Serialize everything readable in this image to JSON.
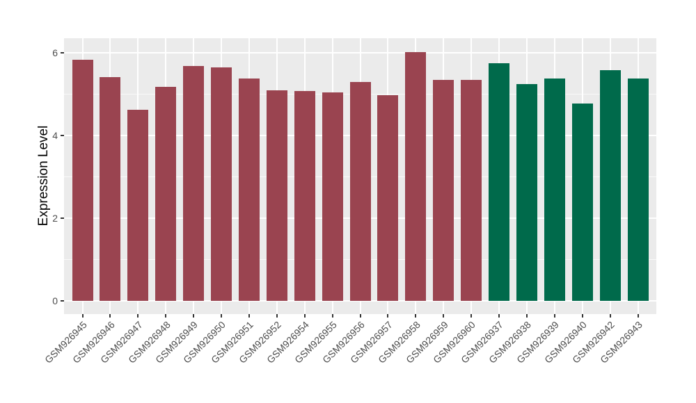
{
  "figure": {
    "background": "#FFFFFF"
  },
  "chart_data": {
    "type": "bar",
    "title": "",
    "xlabel": "",
    "ylabel": "Expression Level",
    "ylim": [
      -0.32,
      6.36
    ],
    "yticks": [
      0,
      2,
      4,
      6
    ],
    "yticks_minor": [
      1,
      3,
      5
    ],
    "grid": "on",
    "legend": "none",
    "panel_background": "#EBEBEB",
    "gridline_color": "#FFFFFF",
    "axis_text_color": "#4D4D4D",
    "tick_mark_color": "#333333",
    "bar_group_colors": {
      "left_group": "#9A4450",
      "right_group": "#006A4B"
    },
    "bars": [
      {
        "label": "GSM926945",
        "value": 5.83,
        "color": "#9A4450"
      },
      {
        "label": "GSM926946",
        "value": 5.41,
        "color": "#9A4450"
      },
      {
        "label": "GSM926947",
        "value": 4.62,
        "color": "#9A4450"
      },
      {
        "label": "GSM926948",
        "value": 5.19,
        "color": "#9A4450"
      },
      {
        "label": "GSM926949",
        "value": 5.69,
        "color": "#9A4450"
      },
      {
        "label": "GSM926950",
        "value": 5.65,
        "color": "#9A4450"
      },
      {
        "label": "GSM926951",
        "value": 5.39,
        "color": "#9A4450"
      },
      {
        "label": "GSM926952",
        "value": 5.09,
        "color": "#9A4450"
      },
      {
        "label": "GSM926954",
        "value": 5.08,
        "color": "#9A4450"
      },
      {
        "label": "GSM926955",
        "value": 5.04,
        "color": "#9A4450"
      },
      {
        "label": "GSM926956",
        "value": 5.3,
        "color": "#9A4450"
      },
      {
        "label": "GSM926957",
        "value": 4.98,
        "color": "#9A4450"
      },
      {
        "label": "GSM926958",
        "value": 6.03,
        "color": "#9A4450"
      },
      {
        "label": "GSM926959",
        "value": 5.35,
        "color": "#9A4450"
      },
      {
        "label": "GSM926960",
        "value": 5.35,
        "color": "#9A4450"
      },
      {
        "label": "GSM926937",
        "value": 5.76,
        "color": "#006A4B"
      },
      {
        "label": "GSM926938",
        "value": 5.25,
        "color": "#006A4B"
      },
      {
        "label": "GSM926939",
        "value": 5.39,
        "color": "#006A4B"
      },
      {
        "label": "GSM926940",
        "value": 4.77,
        "color": "#006A4B"
      },
      {
        "label": "GSM926942",
        "value": 5.59,
        "color": "#006A4B"
      },
      {
        "label": "GSM926943",
        "value": 5.39,
        "color": "#006A4B"
      }
    ]
  }
}
